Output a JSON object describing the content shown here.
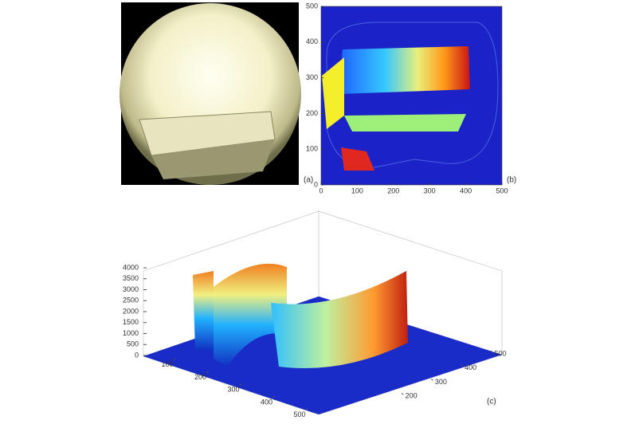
{
  "panels": [
    {
      "label": "(a)"
    },
    {
      "label": "(b)",
      "xlim": [
        0,
        500
      ],
      "ylim": [
        0,
        500
      ],
      "xticks": [
        0,
        100,
        200,
        300,
        400,
        500
      ],
      "yticks": [
        0,
        100,
        200,
        300,
        400,
        500
      ]
    },
    {
      "label": "(c)",
      "zlim": [
        0,
        4000
      ],
      "zticks": [
        0,
        500,
        1000,
        1500,
        2000,
        2500,
        3000,
        3500,
        4000
      ],
      "xticks": [
        100,
        200,
        300,
        400,
        500
      ],
      "yticks": [
        200,
        300,
        400,
        500
      ]
    }
  ]
}
